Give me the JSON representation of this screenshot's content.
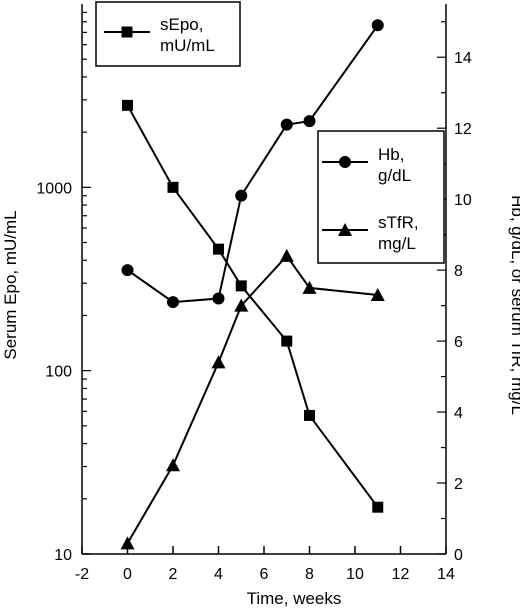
{
  "chart_data": {
    "type": "line",
    "xlabel": "Time, weeks",
    "ylabel_left": "Serum Epo, mU/mL",
    "ylabel_right": "Hb, g/dL, or serum TfR, mg/L",
    "x_ticks": [
      "-2",
      "0",
      "2",
      "4",
      "6",
      "8",
      "10",
      "12",
      "14"
    ],
    "xlim": [
      -2,
      14
    ],
    "left_axis": {
      "scale": "log",
      "ylim": [
        10,
        10000
      ],
      "tick_labels": [
        "10",
        "100",
        "1000"
      ],
      "tick_values": [
        10,
        100,
        1000
      ]
    },
    "right_axis": {
      "scale": "linear",
      "ylim": [
        0,
        15.5
      ],
      "tick_labels": [
        "0",
        "2",
        "4",
        "6",
        "8",
        "10",
        "12",
        "14"
      ],
      "tick_values": [
        0,
        2,
        4,
        6,
        8,
        10,
        12,
        14
      ]
    },
    "series": [
      {
        "name": "sEpo,\nmU/mL",
        "axis": "left",
        "marker": "square",
        "x": [
          0,
          2,
          4,
          5,
          7,
          8,
          11
        ],
        "y": [
          2800,
          1000,
          460,
          290,
          145,
          57,
          18
        ]
      },
      {
        "name": "Hb,\ng/dL",
        "axis": "right",
        "marker": "circle",
        "x": [
          0,
          2,
          4,
          5,
          7,
          8,
          11
        ],
        "y": [
          8.0,
          7.1,
          7.2,
          10.1,
          12.1,
          12.2,
          14.9
        ]
      },
      {
        "name": "sTfR,\nmg/L",
        "axis": "right",
        "marker": "triangle",
        "x": [
          0,
          2,
          4,
          5,
          7,
          8,
          11
        ],
        "y": [
          0.3,
          2.5,
          5.4,
          7.0,
          8.4,
          7.5,
          7.3
        ]
      }
    ],
    "legend_placement": [
      "top-left",
      "right"
    ],
    "grid": false
  }
}
